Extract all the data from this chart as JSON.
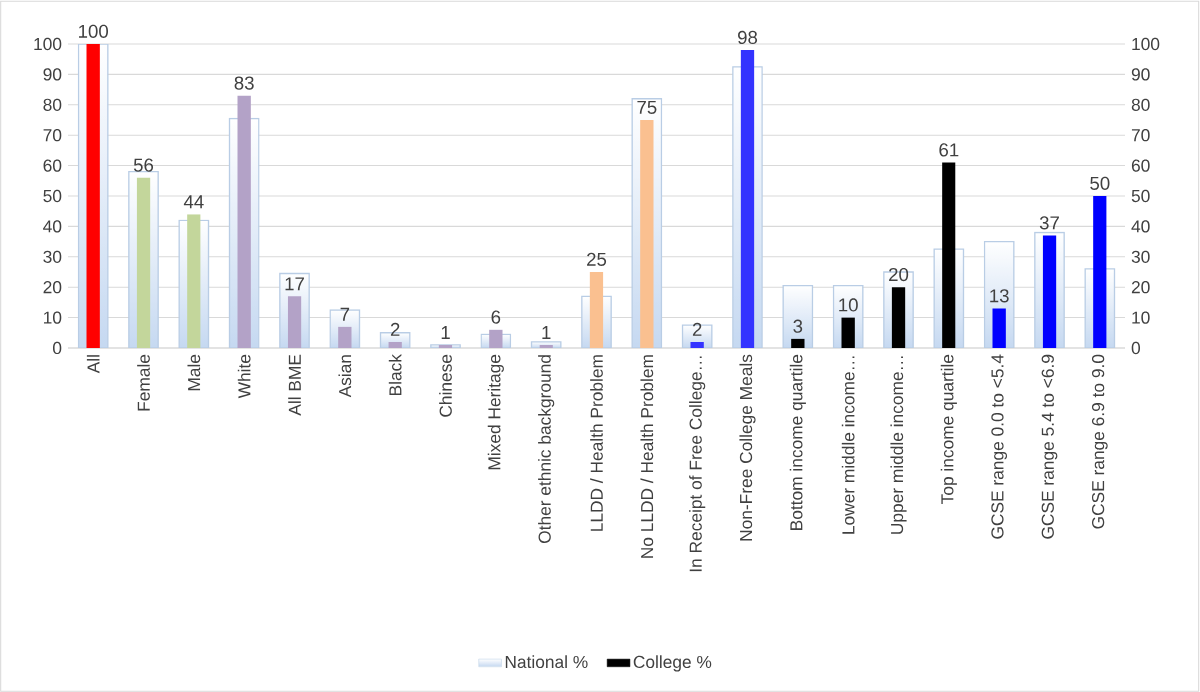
{
  "chart_data": {
    "type": "bar",
    "categories": [
      "All",
      "Female",
      "Male",
      "White",
      "All BME",
      "Asian",
      "Black",
      "Chinese",
      "Mixed Heritage",
      "Other ethnic background",
      "LLDD / Health Problem",
      "No LLDD / Health Problem",
      "In Receipt of Free College…",
      "Non-Free College Meals",
      "Bottom income quartile",
      "Lower middle income…",
      "Upper middle income…",
      "Top income quartile",
      "GCSE range 0.0 to <5.4",
      "GCSE range 5.4 to <6.9",
      "GCSE range 6.9 to 9.0"
    ],
    "series": [
      {
        "name": "National %",
        "color": "#c6d9f1",
        "values": [
          100,
          58,
          42,
          75.5,
          24.5,
          12.5,
          5,
          1,
          4.5,
          2,
          17,
          82,
          7.5,
          92.5,
          20.5,
          20.5,
          25,
          32.5,
          35,
          38,
          26
        ]
      },
      {
        "name": "College %",
        "color": "#000000",
        "axis": "y2",
        "values": [
          100,
          56,
          44,
          83,
          17,
          7,
          2,
          1,
          6,
          1,
          25,
          75,
          2,
          98,
          3,
          10,
          20,
          61,
          13,
          37,
          50
        ],
        "value_labels": [
          "100",
          "56",
          "44",
          "83",
          "17",
          "7",
          "2",
          "1",
          "6",
          "1",
          "25",
          "75",
          "2",
          "98",
          "3",
          "10",
          "20",
          "61",
          "13",
          "37",
          "50"
        ],
        "colors": [
          "#ff0000",
          "#c3d69b",
          "#c3d69b",
          "#b3a2c7",
          "#b3a2c7",
          "#b3a2c7",
          "#b3a2c7",
          "#b3a2c7",
          "#b3a2c7",
          "#b3a2c7",
          "#fac090",
          "#fac090",
          "#3333ff",
          "#3333ff",
          "#000000",
          "#000000",
          "#000000",
          "#000000",
          "#0000ff",
          "#0000ff",
          "#0000ff"
        ]
      }
    ],
    "ylim": [
      0,
      100
    ],
    "yticks": [
      0,
      10,
      20,
      30,
      40,
      50,
      60,
      70,
      80,
      90,
      100
    ],
    "y2lim": [
      0,
      100
    ],
    "y2ticks": [
      0,
      10,
      20,
      30,
      40,
      50,
      60,
      70,
      80,
      90,
      100
    ],
    "grid": "y",
    "legend": "bottom"
  }
}
